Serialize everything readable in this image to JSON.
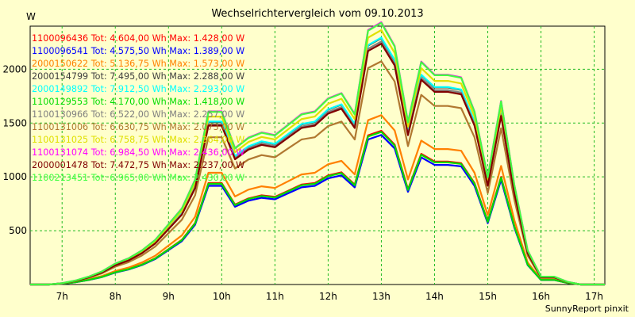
{
  "chart_data": {
    "type": "line",
    "title": "Wechselrichtervergleich vom 09.10.2013",
    "y_unit_label": "W",
    "credit": "SunnyReport pinxit",
    "x_ticks": [
      "7h",
      "8h",
      "9h",
      "10h",
      "11h",
      "12h",
      "13h",
      "14h",
      "15h",
      "16h",
      "17h"
    ],
    "y_ticks": [
      500,
      1000,
      1500,
      2000
    ],
    "xlim": [
      6.4,
      17.2
    ],
    "ylim": [
      0,
      2400
    ],
    "grid": true,
    "legend_position": "top-left",
    "x": [
      6.4,
      6.5,
      6.75,
      7.0,
      7.25,
      7.5,
      7.75,
      8.0,
      8.25,
      8.5,
      8.75,
      9.0,
      9.25,
      9.5,
      9.75,
      10.0,
      10.25,
      10.5,
      10.75,
      11.0,
      11.25,
      11.5,
      11.75,
      12.0,
      12.25,
      12.5,
      12.75,
      13.0,
      13.25,
      13.5,
      13.75,
      14.0,
      14.25,
      14.5,
      14.75,
      15.0,
      15.25,
      15.5,
      15.75,
      16.0,
      16.25,
      16.5,
      16.75,
      17.0,
      17.2
    ],
    "profile": [
      0,
      0,
      0,
      0.005,
      0.015,
      0.03,
      0.05,
      0.08,
      0.1,
      0.13,
      0.17,
      0.23,
      0.29,
      0.4,
      0.66,
      0.66,
      0.52,
      0.56,
      0.58,
      0.57,
      0.61,
      0.65,
      0.66,
      0.71,
      0.73,
      0.65,
      0.97,
      1.0,
      0.91,
      0.62,
      0.85,
      0.8,
      0.8,
      0.79,
      0.66,
      0.41,
      0.7,
      0.38,
      0.13,
      0.03,
      0.03,
      0.01,
      0,
      0,
      0
    ],
    "series": [
      {
        "label": "1100096436 Tot: 4.604,00 Wh Max: 1.428,00 W",
        "color": "#ff0000",
        "peak": 1428
      },
      {
        "label": "1100096541 Tot: 4.575,50 Wh Max: 1.389,00 W",
        "color": "#0000ff",
        "peak": 1389
      },
      {
        "label": "2000150622 Tot: 5.136,75 Wh Max: 1.573,00 W",
        "color": "#ff8000",
        "peak": 1573
      },
      {
        "label": "2000154799 Tot: 7.495,00 Wh Max: 2.288,00 W",
        "color": "#404040",
        "peak": 2288
      },
      {
        "label": "2000149892 Tot: 7.912,50 Wh Max: 2.293,00 W",
        "color": "#00ffff",
        "peak": 2293
      },
      {
        "label": "1100129553 Tot: 4.170,00 Wh Max: 1.418,00 W",
        "color": "#00dd00",
        "peak": 1418
      },
      {
        "label": "1100130966 Tot: 6.522,00 Wh Max: 2.257,00 W",
        "color": "#808080",
        "peak": 2257
      },
      {
        "label": "1100131006 Tot: 6.630,75 Wh Max: 2.073,00 W",
        "color": "#b07830",
        "peak": 2073
      },
      {
        "label": "1100131025 Tot: 6.758,75 Wh Max: 2.364,00 W",
        "color": "#e0e000",
        "peak": 2364
      },
      {
        "label": "1100131074 Tot: 6.984,50 Wh Max: 2.436,00 W",
        "color": "#ff00ff",
        "peak": 2436
      },
      {
        "label": "2000001478 Tot: 7.472,75 Wh Max: 2.237,00 W",
        "color": "#800000",
        "peak": 2237
      },
      {
        "label": "1100213451 Tot: 6.965,00 Wh Max: 2.430,00 W",
        "color": "#40ff40",
        "peak": 2430
      }
    ]
  }
}
